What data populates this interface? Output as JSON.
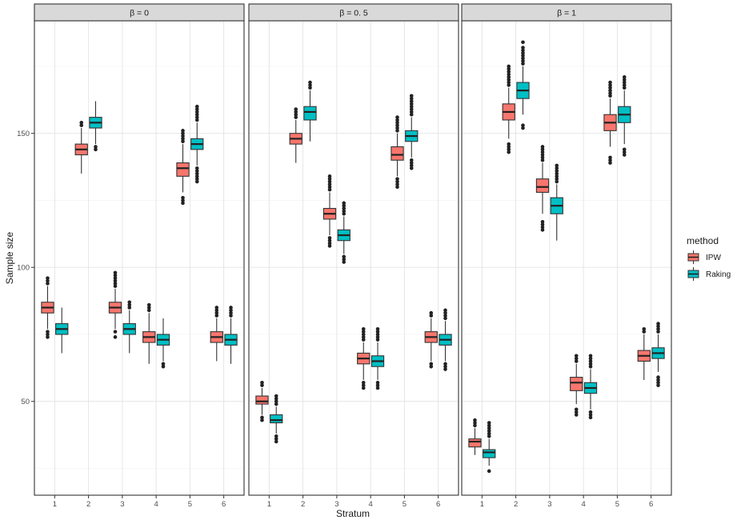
{
  "chart_data": {
    "type": "boxplot",
    "title": "",
    "xlabel": "Stratum",
    "ylabel": "Sample size",
    "ylim": [
      15,
      192
    ],
    "yticks": [
      50,
      100,
      150
    ],
    "categories": [
      "1",
      "2",
      "3",
      "4",
      "5",
      "6"
    ],
    "legend": {
      "title": "method",
      "position": "right",
      "entries": [
        {
          "name": "IPW",
          "color": "#F8766D"
        },
        {
          "name": "Raking",
          "color": "#00BFC4"
        }
      ]
    },
    "panels": [
      {
        "label": "β = 0",
        "series": [
          {
            "name": "IPW",
            "boxes": [
              {
                "q1": 83,
                "median": 85,
                "q3": 87,
                "whisker_low": 77,
                "whisker_high": 93,
                "outliers": [
                  74,
                  75,
                  76,
                  94,
                  95,
                  96
                ]
              },
              {
                "q1": 142,
                "median": 144,
                "q3": 146,
                "whisker_low": 135,
                "whisker_high": 152,
                "outliers": [
                  153,
                  154
                ]
              },
              {
                "q1": 83,
                "median": 85,
                "q3": 87,
                "whisker_low": 77,
                "whisker_high": 92,
                "outliers": [
                  74,
                  76,
                  93,
                  94,
                  95,
                  96,
                  97,
                  98
                ]
              },
              {
                "q1": 72,
                "median": 74,
                "q3": 76,
                "whisker_low": 64,
                "whisker_high": 83,
                "outliers": [
                  84,
                  85,
                  86
                ]
              },
              {
                "q1": 134,
                "median": 137,
                "q3": 139,
                "whisker_low": 128,
                "whisker_high": 146,
                "outliers": [
                  124,
                  125,
                  126,
                  147,
                  148,
                  149,
                  150,
                  151
                ]
              },
              {
                "q1": 72,
                "median": 74,
                "q3": 76,
                "whisker_low": 65,
                "whisker_high": 81,
                "outliers": [
                  82,
                  83,
                  84,
                  85
                ]
              }
            ]
          },
          {
            "name": "Raking",
            "boxes": [
              {
                "q1": 75,
                "median": 77,
                "q3": 79,
                "whisker_low": 68,
                "whisker_high": 85,
                "outliers": []
              },
              {
                "q1": 152,
                "median": 154,
                "q3": 156,
                "whisker_low": 146,
                "whisker_high": 162,
                "outliers": [
                  144,
                  145
                ]
              },
              {
                "q1": 75,
                "median": 77,
                "q3": 79,
                "whisker_low": 68,
                "whisker_high": 84,
                "outliers": [
                  85,
                  86,
                  87
                ]
              },
              {
                "q1": 71,
                "median": 73,
                "q3": 75,
                "whisker_low": 65,
                "whisker_high": 81,
                "outliers": [
                  63,
                  64
                ]
              },
              {
                "q1": 144,
                "median": 146,
                "q3": 148,
                "whisker_low": 138,
                "whisker_high": 154,
                "outliers": [
                  132,
                  133,
                  134,
                  135,
                  136,
                  137,
                  155,
                  156,
                  157,
                  158,
                  159,
                  160
                ]
              },
              {
                "q1": 71,
                "median": 73,
                "q3": 75,
                "whisker_low": 64,
                "whisker_high": 81,
                "outliers": [
                  82,
                  83,
                  84,
                  85
                ]
              }
            ]
          }
        ]
      },
      {
        "label": "β = 0. 5",
        "series": [
          {
            "name": "IPW",
            "boxes": [
              {
                "q1": 49,
                "median": 50,
                "q3": 52,
                "whisker_low": 45,
                "whisker_high": 55,
                "outliers": [
                  43,
                  44,
                  56,
                  57
                ]
              },
              {
                "q1": 146,
                "median": 148,
                "q3": 150,
                "whisker_low": 139,
                "whisker_high": 155,
                "outliers": [
                  156,
                  157,
                  158,
                  159
                ]
              },
              {
                "q1": 118,
                "median": 120,
                "q3": 122,
                "whisker_low": 112,
                "whisker_high": 128,
                "outliers": [
                  108,
                  109,
                  110,
                  111,
                  129,
                  130,
                  131,
                  132,
                  133,
                  134
                ]
              },
              {
                "q1": 64,
                "median": 66,
                "q3": 68,
                "whisker_low": 58,
                "whisker_high": 72,
                "outliers": [
                  55,
                  56,
                  57,
                  73,
                  74,
                  75,
                  76,
                  77
                ]
              },
              {
                "q1": 140,
                "median": 142,
                "q3": 145,
                "whisker_low": 134,
                "whisker_high": 150,
                "outliers": [
                  130,
                  131,
                  132,
                  133,
                  151,
                  152,
                  153,
                  154,
                  155,
                  156
                ]
              },
              {
                "q1": 72,
                "median": 74,
                "q3": 76,
                "whisker_low": 65,
                "whisker_high": 81,
                "outliers": [
                  63,
                  64,
                  82,
                  83
                ]
              }
            ]
          },
          {
            "name": "Raking",
            "boxes": [
              {
                "q1": 42,
                "median": 43,
                "q3": 45,
                "whisker_low": 38,
                "whisker_high": 48,
                "outliers": [
                  35,
                  36,
                  37,
                  49,
                  50,
                  51,
                  52
                ]
              },
              {
                "q1": 155,
                "median": 158,
                "q3": 160,
                "whisker_low": 147,
                "whisker_high": 166,
                "outliers": [
                  167,
                  168,
                  169
                ]
              },
              {
                "q1": 110,
                "median": 112,
                "q3": 114,
                "whisker_low": 105,
                "whisker_high": 119,
                "outliers": [
                  102,
                  103,
                  104,
                  120,
                  121,
                  122,
                  123,
                  124
                ]
              },
              {
                "q1": 63,
                "median": 65,
                "q3": 67,
                "whisker_low": 58,
                "whisker_high": 72,
                "outliers": [
                  55,
                  56,
                  57,
                  73,
                  74,
                  75,
                  76,
                  77
                ]
              },
              {
                "q1": 147,
                "median": 149,
                "q3": 151,
                "whisker_low": 141,
                "whisker_high": 156,
                "outliers": [
                  137,
                  138,
                  139,
                  140,
                  157,
                  158,
                  159,
                  160,
                  161,
                  162,
                  163,
                  164
                ]
              },
              {
                "q1": 71,
                "median": 73,
                "q3": 75,
                "whisker_low": 65,
                "whisker_high": 80,
                "outliers": [
                  62,
                  63,
                  64,
                  81,
                  82,
                  83,
                  84
                ]
              }
            ]
          }
        ]
      },
      {
        "label": "β = 1",
        "series": [
          {
            "name": "IPW",
            "boxes": [
              {
                "q1": 33,
                "median": 35,
                "q3": 36,
                "whisker_low": 30,
                "whisker_high": 40,
                "outliers": [
                  41,
                  42,
                  43
                ]
              },
              {
                "q1": 155,
                "median": 158,
                "q3": 161,
                "whisker_low": 148,
                "whisker_high": 167,
                "outliers": [
                  143,
                  144,
                  145,
                  146,
                  168,
                  169,
                  170,
                  171,
                  172,
                  173,
                  174,
                  175
                ]
              },
              {
                "q1": 128,
                "median": 130,
                "q3": 133,
                "whisker_low": 120,
                "whisker_high": 139,
                "outliers": [
                  114,
                  115,
                  116,
                  117,
                  140,
                  141,
                  142,
                  143,
                  144,
                  145
                ]
              },
              {
                "q1": 54,
                "median": 57,
                "q3": 59,
                "whisker_low": 49,
                "whisker_high": 64,
                "outliers": [
                  45,
                  46,
                  47,
                  65,
                  66,
                  67
                ]
              },
              {
                "q1": 151,
                "median": 154,
                "q3": 157,
                "whisker_low": 145,
                "whisker_high": 163,
                "outliers": [
                  139,
                  140,
                  141,
                  164,
                  165,
                  166,
                  167,
                  168,
                  169
                ]
              },
              {
                "q1": 65,
                "median": 67,
                "q3": 69,
                "whisker_low": 58,
                "whisker_high": 75,
                "outliers": [
                  76,
                  77
                ]
              }
            ]
          },
          {
            "name": "Raking",
            "boxes": [
              {
                "q1": 29,
                "median": 31,
                "q3": 32,
                "whisker_low": 26,
                "whisker_high": 36,
                "outliers": [
                  24,
                  37,
                  38,
                  39,
                  40,
                  41,
                  42
                ]
              },
              {
                "q1": 163,
                "median": 166,
                "q3": 169,
                "whisker_low": 157,
                "whisker_high": 175,
                "outliers": [
                  152,
                  153,
                  176,
                  177,
                  178,
                  179,
                  180,
                  181,
                  182,
                  184
                ]
              },
              {
                "q1": 120,
                "median": 123,
                "q3": 126,
                "whisker_low": 110,
                "whisker_high": 131,
                "outliers": [
                  132,
                  133,
                  134,
                  135,
                  136,
                  137,
                  138
                ]
              },
              {
                "q1": 53,
                "median": 55,
                "q3": 57,
                "whisker_low": 47,
                "whisker_high": 62,
                "outliers": [
                  44,
                  45,
                  46,
                  63,
                  64,
                  65,
                  66,
                  67
                ]
              },
              {
                "q1": 154,
                "median": 157,
                "q3": 160,
                "whisker_low": 146,
                "whisker_high": 166,
                "outliers": [
                  142,
                  143,
                  144,
                  167,
                  168,
                  169,
                  170,
                  171
                ]
              },
              {
                "q1": 66,
                "median": 68,
                "q3": 70,
                "whisker_low": 61,
                "whisker_high": 75,
                "outliers": [
                  56,
                  57,
                  58,
                  59,
                  76,
                  77,
                  78,
                  79
                ]
              }
            ]
          }
        ]
      }
    ]
  }
}
